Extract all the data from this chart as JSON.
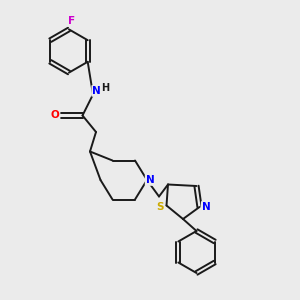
{
  "background_color": "#ebebeb",
  "bond_color": "#1a1a1a",
  "atom_colors": {
    "F": "#cc00cc",
    "N": "#0000ff",
    "O": "#ff0000",
    "S": "#ccaa00",
    "C": "#1a1a1a",
    "H": "#1a1a1a"
  }
}
